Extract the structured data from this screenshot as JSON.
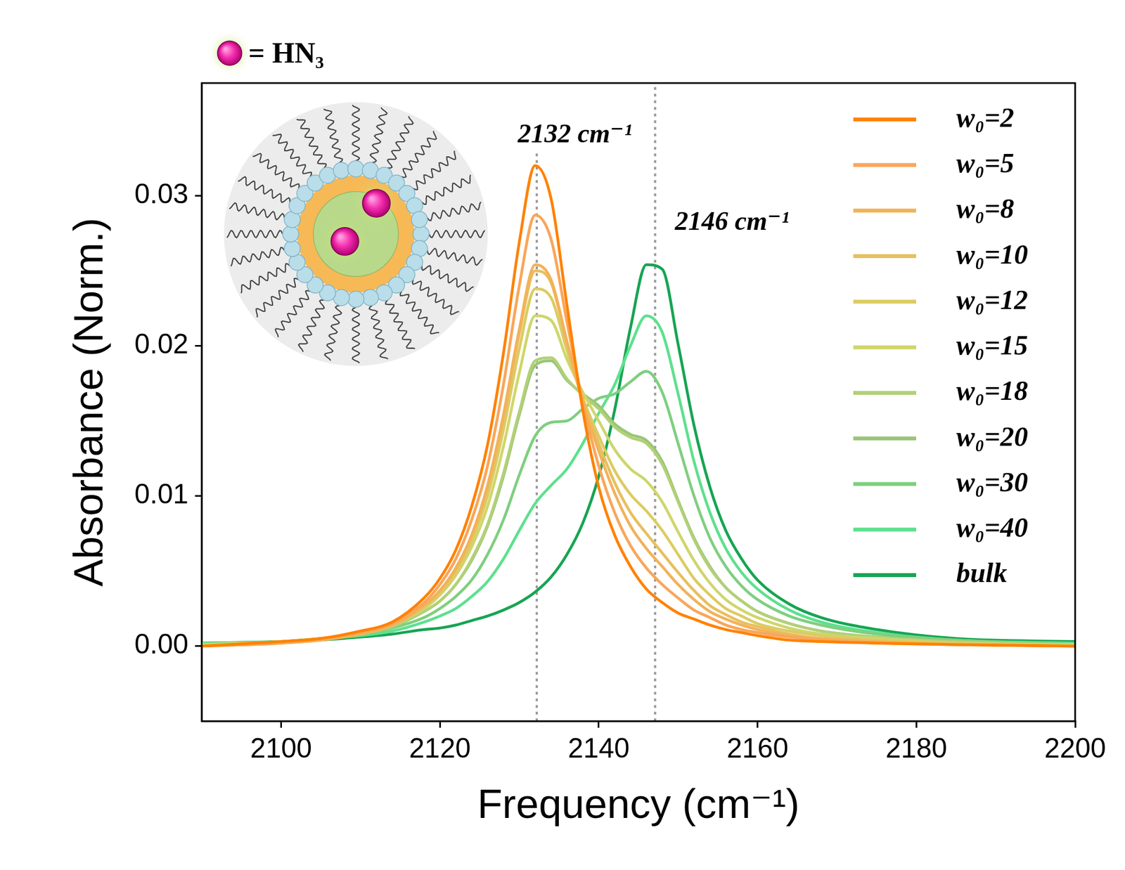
{
  "chart_data": {
    "type": "line",
    "xlabel": "Frequency (cm⁻¹)",
    "ylabel": "Absorbance (Norm.)",
    "inset_label": "= HN₃",
    "x": [
      2090,
      2100,
      2105,
      2110,
      2114,
      2118,
      2120,
      2122,
      2124,
      2126,
      2128,
      2130,
      2132,
      2134,
      2136,
      2138,
      2140,
      2142,
      2144,
      2146,
      2148,
      2150,
      2152,
      2154,
      2156,
      2158,
      2160,
      2164,
      2168,
      2175,
      2185,
      2200
    ],
    "series": [
      {
        "name": "w₀=2",
        "color": "#ff8200",
        "values": [
          0,
          0.0003,
          0.0005,
          0.001,
          0.0016,
          0.0032,
          0.0045,
          0.0064,
          0.0093,
          0.0134,
          0.0195,
          0.0269,
          0.032,
          0.0298,
          0.0227,
          0.0157,
          0.0106,
          0.0074,
          0.0053,
          0.0038,
          0.0029,
          0.0022,
          0.0018,
          0.0014,
          0.0011,
          0.0009,
          0.0007,
          0.0004,
          0.0003,
          0.0002,
          0.0001,
          0
        ]
      },
      {
        "name": "w₀=5",
        "color": "#f9a65a",
        "values": [
          0,
          0.0002,
          0.0005,
          0.0009,
          0.0015,
          0.0029,
          0.0041,
          0.0058,
          0.0084,
          0.012,
          0.0174,
          0.024,
          0.0287,
          0.0271,
          0.0216,
          0.0162,
          0.012,
          0.0089,
          0.0067,
          0.0052,
          0.0041,
          0.0032,
          0.0024,
          0.0019,
          0.0014,
          0.0011,
          0.0009,
          0.0006,
          0.0004,
          0.0002,
          0.0001,
          0
        ]
      },
      {
        "name": "w₀=8",
        "color": "#f2b25a",
        "values": [
          0,
          0.0002,
          0.0004,
          0.0008,
          0.0014,
          0.0027,
          0.0037,
          0.0052,
          0.0074,
          0.0107,
          0.0154,
          0.0211,
          0.0254,
          0.0244,
          0.0203,
          0.0162,
          0.013,
          0.0102,
          0.008,
          0.0065,
          0.0053,
          0.0041,
          0.0031,
          0.0023,
          0.0018,
          0.0014,
          0.0011,
          0.0007,
          0.0005,
          0.0003,
          0.0001,
          0
        ]
      },
      {
        "name": "w₀=10",
        "color": "#e8bf5f",
        "values": [
          0,
          0.0002,
          0.0004,
          0.0009,
          0.0014,
          0.0027,
          0.0037,
          0.0051,
          0.0073,
          0.0105,
          0.0151,
          0.0208,
          0.025,
          0.0242,
          0.0202,
          0.0165,
          0.0135,
          0.0109,
          0.0089,
          0.0075,
          0.0062,
          0.0049,
          0.0037,
          0.0027,
          0.0021,
          0.0016,
          0.0013,
          0.0008,
          0.0005,
          0.0003,
          0.0001,
          0
        ]
      },
      {
        "name": "w₀=12",
        "color": "#dccb62",
        "values": [
          0,
          0.0003,
          0.0005,
          0.0009,
          0.0014,
          0.0026,
          0.0035,
          0.0049,
          0.007,
          0.01,
          0.0144,
          0.0198,
          0.0238,
          0.0232,
          0.0197,
          0.0165,
          0.014,
          0.0117,
          0.0101,
          0.009,
          0.0077,
          0.0061,
          0.0045,
          0.0034,
          0.0025,
          0.002,
          0.0015,
          0.001,
          0.0007,
          0.0004,
          0.0002,
          0
        ]
      },
      {
        "name": "w₀=15",
        "color": "#cfd66b",
        "values": [
          0.0001,
          0.0003,
          0.0005,
          0.0008,
          0.0014,
          0.0025,
          0.0034,
          0.0047,
          0.0066,
          0.0093,
          0.0133,
          0.0182,
          0.022,
          0.0217,
          0.0191,
          0.0169,
          0.015,
          0.0131,
          0.0118,
          0.011,
          0.0096,
          0.0076,
          0.0057,
          0.0042,
          0.0031,
          0.0024,
          0.0019,
          0.0012,
          0.0008,
          0.0005,
          0.0002,
          0.0001
        ]
      },
      {
        "name": "w₀=18",
        "color": "#b3d077",
        "values": [
          0.0001,
          0.0003,
          0.0005,
          0.0008,
          0.0013,
          0.0023,
          0.003,
          0.0041,
          0.0058,
          0.0081,
          0.0115,
          0.0156,
          0.019,
          0.0192,
          0.0178,
          0.0167,
          0.0158,
          0.0146,
          0.0139,
          0.0135,
          0.0121,
          0.0096,
          0.0071,
          0.0052,
          0.0039,
          0.003,
          0.0023,
          0.0015,
          0.001,
          0.0006,
          0.0003,
          0.0001
        ]
      },
      {
        "name": "w₀=20",
        "color": "#98c677",
        "values": [
          0.0001,
          0.0003,
          0.0005,
          0.0008,
          0.0013,
          0.0023,
          0.003,
          0.0041,
          0.0057,
          0.008,
          0.0113,
          0.0154,
          0.0187,
          0.019,
          0.0177,
          0.0168,
          0.016,
          0.0148,
          0.0141,
          0.0137,
          0.0123,
          0.0097,
          0.0072,
          0.0053,
          0.0039,
          0.003,
          0.0023,
          0.0015,
          0.001,
          0.0006,
          0.0003,
          0.0001
        ]
      },
      {
        "name": "w₀=30",
        "color": "#7fcf80",
        "values": [
          0.0001,
          0.0003,
          0.0005,
          0.0008,
          0.0012,
          0.0019,
          0.0025,
          0.0033,
          0.0044,
          0.0061,
          0.0084,
          0.0114,
          0.014,
          0.0149,
          0.015,
          0.0158,
          0.0165,
          0.0168,
          0.0176,
          0.0183,
          0.0169,
          0.0135,
          0.01,
          0.0072,
          0.0053,
          0.004,
          0.0031,
          0.002,
          0.0014,
          0.0008,
          0.0004,
          0.0001
        ]
      },
      {
        "name": "w₀=40",
        "color": "#5ee08e",
        "values": [
          0.0002,
          0.0003,
          0.0005,
          0.0007,
          0.001,
          0.0016,
          0.002,
          0.0025,
          0.0033,
          0.0043,
          0.0058,
          0.0077,
          0.0095,
          0.0107,
          0.0118,
          0.0135,
          0.0155,
          0.0174,
          0.02,
          0.022,
          0.0209,
          0.0168,
          0.0123,
          0.0089,
          0.0065,
          0.0049,
          0.0038,
          0.0024,
          0.0016,
          0.0009,
          0.0004,
          0.0002
        ]
      },
      {
        "name": "bulk",
        "color": "#16a552",
        "values": [
          0.0002,
          0.0003,
          0.0004,
          0.0006,
          0.0008,
          0.0011,
          0.0012,
          0.0014,
          0.0017,
          0.002,
          0.0024,
          0.0029,
          0.0036,
          0.0046,
          0.0061,
          0.0082,
          0.0113,
          0.0157,
          0.0212,
          0.0254,
          0.0251,
          0.0201,
          0.0147,
          0.0106,
          0.0077,
          0.0058,
          0.0044,
          0.0028,
          0.0019,
          0.0011,
          0.0005,
          0.0003
        ]
      }
    ],
    "xlim": [
      2090,
      2200
    ],
    "xticks": [
      2100,
      2120,
      2140,
      2160,
      2180,
      2200
    ],
    "ylim": [
      -0.005,
      0.0375
    ],
    "yticks": [
      {
        "value": 0,
        "label": "0.00"
      },
      0.01,
      0.02,
      0.03
    ],
    "grid": false,
    "legend": "upper right",
    "annotations": [
      {
        "text": "2132 cm⁻¹",
        "x": 2137,
        "y": 0.034
      },
      {
        "text": "2146 cm⁻¹",
        "x": 2156.8,
        "y": 0.0282
      }
    ],
    "reference_lines": [
      {
        "x": 2132.2,
        "line_style": "dotted"
      },
      {
        "x": 2147.1,
        "line_style": "dotted"
      }
    ]
  }
}
